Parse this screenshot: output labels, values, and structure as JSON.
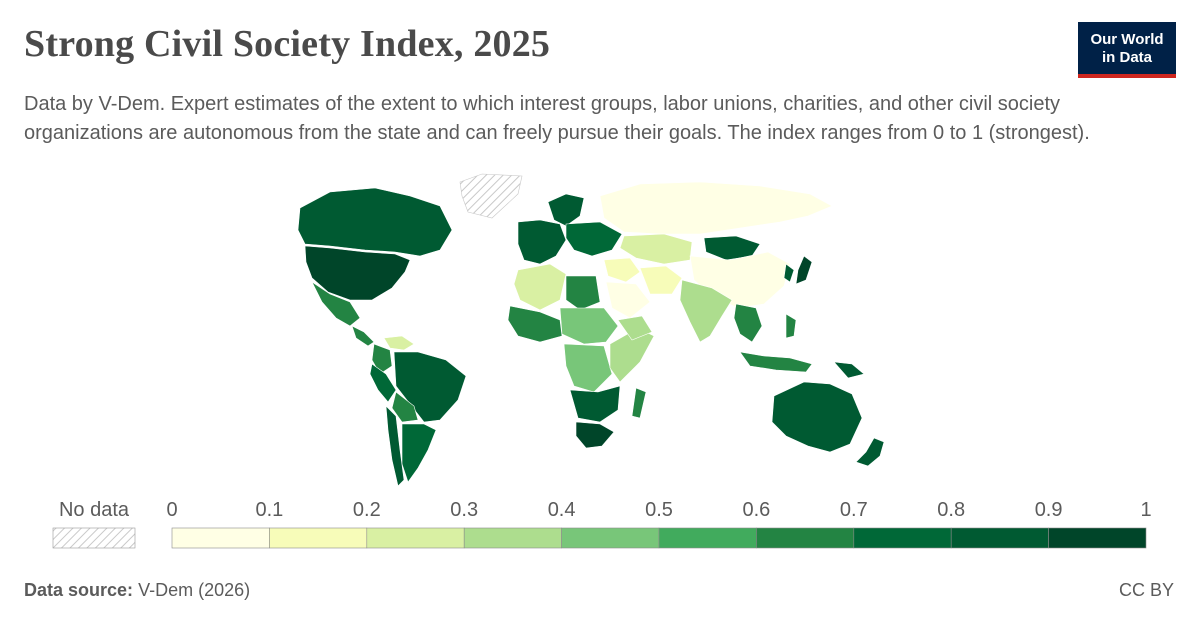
{
  "header": {
    "title": "Strong Civil Society Index, 2025",
    "subtitle": "Data by V-Dem. Expert estimates of the extent to which interest groups, labor unions, charities, and other civil society organizations are autonomous from the state and can freely pursue their goals. The index ranges from 0 to 1 (strongest).",
    "logo_line1": "Our World",
    "logo_line2": "in Data"
  },
  "colors": {
    "no_data_hatch": "#bdbdbd",
    "scale": [
      "#ffffe5",
      "#f7fcb9",
      "#d9f0a3",
      "#addd8e",
      "#78c679",
      "#41ab5d",
      "#238443",
      "#006837",
      "#005a32",
      "#004529"
    ],
    "brand_navy": "#002147",
    "brand_red": "#ce261e"
  },
  "legend": {
    "no_data_label": "No data",
    "ticks": [
      "0",
      "0.1",
      "0.2",
      "0.3",
      "0.4",
      "0.5",
      "0.6",
      "0.7",
      "0.8",
      "0.9",
      "1"
    ]
  },
  "footer": {
    "source_label": "Data source:",
    "source_value": "V-Dem (2026)",
    "license": "CC BY"
  },
  "regions": [
    {
      "name": "Canada",
      "bin": 8
    },
    {
      "name": "United States",
      "bin": 9
    },
    {
      "name": "Mexico",
      "bin": 6
    },
    {
      "name": "Central America",
      "bin": 6
    },
    {
      "name": "Venezuela",
      "bin": 2
    },
    {
      "name": "Colombia",
      "bin": 6
    },
    {
      "name": "Brazil",
      "bin": 8
    },
    {
      "name": "Peru",
      "bin": 7
    },
    {
      "name": "Bolivia",
      "bin": 6
    },
    {
      "name": "Argentina",
      "bin": 7
    },
    {
      "name": "Chile",
      "bin": 8
    },
    {
      "name": "Greenland",
      "bin": -1
    },
    {
      "name": "Western Europe",
      "bin": 8
    },
    {
      "name": "Scandinavia",
      "bin": 8
    },
    {
      "name": "Eastern Europe",
      "bin": 7
    },
    {
      "name": "Russia",
      "bin": 0
    },
    {
      "name": "Central Asia",
      "bin": 2
    },
    {
      "name": "Mongolia",
      "bin": 8
    },
    {
      "name": "China",
      "bin": 0
    },
    {
      "name": "Japan",
      "bin": 9
    },
    {
      "name": "Korea",
      "bin": 8
    },
    {
      "name": "Middle East",
      "bin": 1
    },
    {
      "name": "Saudi Arabia",
      "bin": 0
    },
    {
      "name": "Iran",
      "bin": 1
    },
    {
      "name": "India",
      "bin": 3
    },
    {
      "name": "Southeast Asia",
      "bin": 6
    },
    {
      "name": "Indonesia",
      "bin": 6
    },
    {
      "name": "Philippines",
      "bin": 6
    },
    {
      "name": "Papua New Guinea",
      "bin": 8
    },
    {
      "name": "Australia",
      "bin": 8
    },
    {
      "name": "New Zealand",
      "bin": 8
    },
    {
      "name": "North Africa",
      "bin": 2
    },
    {
      "name": "Libya",
      "bin": 6
    },
    {
      "name": "West Africa",
      "bin": 6
    },
    {
      "name": "Sahel",
      "bin": 4
    },
    {
      "name": "Central Africa",
      "bin": 4
    },
    {
      "name": "East Africa",
      "bin": 3
    },
    {
      "name": "Ethiopia",
      "bin": 3
    },
    {
      "name": "Southern Africa",
      "bin": 8
    },
    {
      "name": "South Africa",
      "bin": 9
    },
    {
      "name": "Madagascar",
      "bin": 6
    }
  ]
}
